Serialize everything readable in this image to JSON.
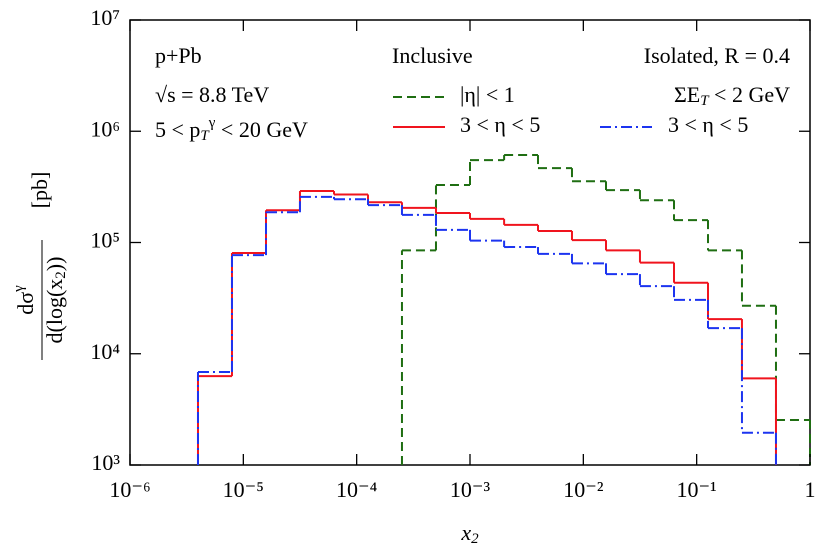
{
  "chart_data": {
    "type": "histogram",
    "x_label": "x_2",
    "y_label": {
      "numerator": "dσ^γ",
      "denominator": "d(log(x_2))",
      "unit": "[pb]"
    },
    "xscale": "log",
    "yscale": "log",
    "xlim": [
      1e-06,
      1
    ],
    "ylim": [
      1000,
      10000000
    ],
    "xticks": [
      {
        "value": 1e-06,
        "label": "10⁻⁶"
      },
      {
        "value": 1e-05,
        "label": "10⁻⁵"
      },
      {
        "value": 0.0001,
        "label": "10⁻⁴"
      },
      {
        "value": 0.001,
        "label": "10⁻³"
      },
      {
        "value": 0.01,
        "label": "10⁻²"
      },
      {
        "value": 0.1,
        "label": "10⁻¹"
      },
      1
    ],
    "yticks": [
      {
        "value": 1000,
        "label": "10³"
      },
      {
        "value": 10000,
        "label": "10⁴"
      },
      {
        "value": 100000,
        "label": "10⁵"
      },
      {
        "value": 1000000,
        "label": "10⁶"
      },
      {
        "value": 10000000,
        "label": "10⁷"
      }
    ],
    "annotations": [
      "p+Pb",
      "√s = 8.8 TeV",
      "5 < p_T^γ < 20 GeV",
      "Inclusive",
      "Isolated, R = 0.4",
      "ΣE_T < 2 GeV"
    ],
    "bins": [
      3.98e-06,
      7.94e-06,
      1.585e-05,
      3.16e-05,
      6.31e-05,
      0.0001259,
      0.000251,
      0.000501,
      0.001,
      0.002,
      0.00398,
      0.00794,
      0.01585,
      0.0316,
      0.0631,
      0.1259,
      0.251,
      0.501,
      1
    ],
    "series": [
      {
        "name": "|η| < 1",
        "color": "#1f6e12",
        "dash": "9,5",
        "values": [
          null,
          null,
          null,
          null,
          null,
          null,
          85000,
          329000,
          550000,
          611000,
          466000,
          355000,
          296000,
          240000,
          159000,
          85000,
          27000,
          2540
        ]
      },
      {
        "name": "3 < η < 5",
        "color": "#f0141e",
        "dash": "none",
        "values": [
          6300,
          80500,
          195000,
          290000,
          270000,
          230000,
          205000,
          184000,
          163000,
          144000,
          127000,
          105000,
          85000,
          66000,
          43500,
          20500,
          6000,
          null
        ]
      },
      {
        "name": "3 < η < 5",
        "color": "#1c34f0",
        "dash": "11,4,2,4",
        "values": [
          6850,
          77000,
          187000,
          257000,
          245000,
          217000,
          177000,
          130000,
          104000,
          91000,
          79000,
          65000,
          52000,
          40500,
          30500,
          17000,
          1950,
          null
        ]
      }
    ]
  }
}
